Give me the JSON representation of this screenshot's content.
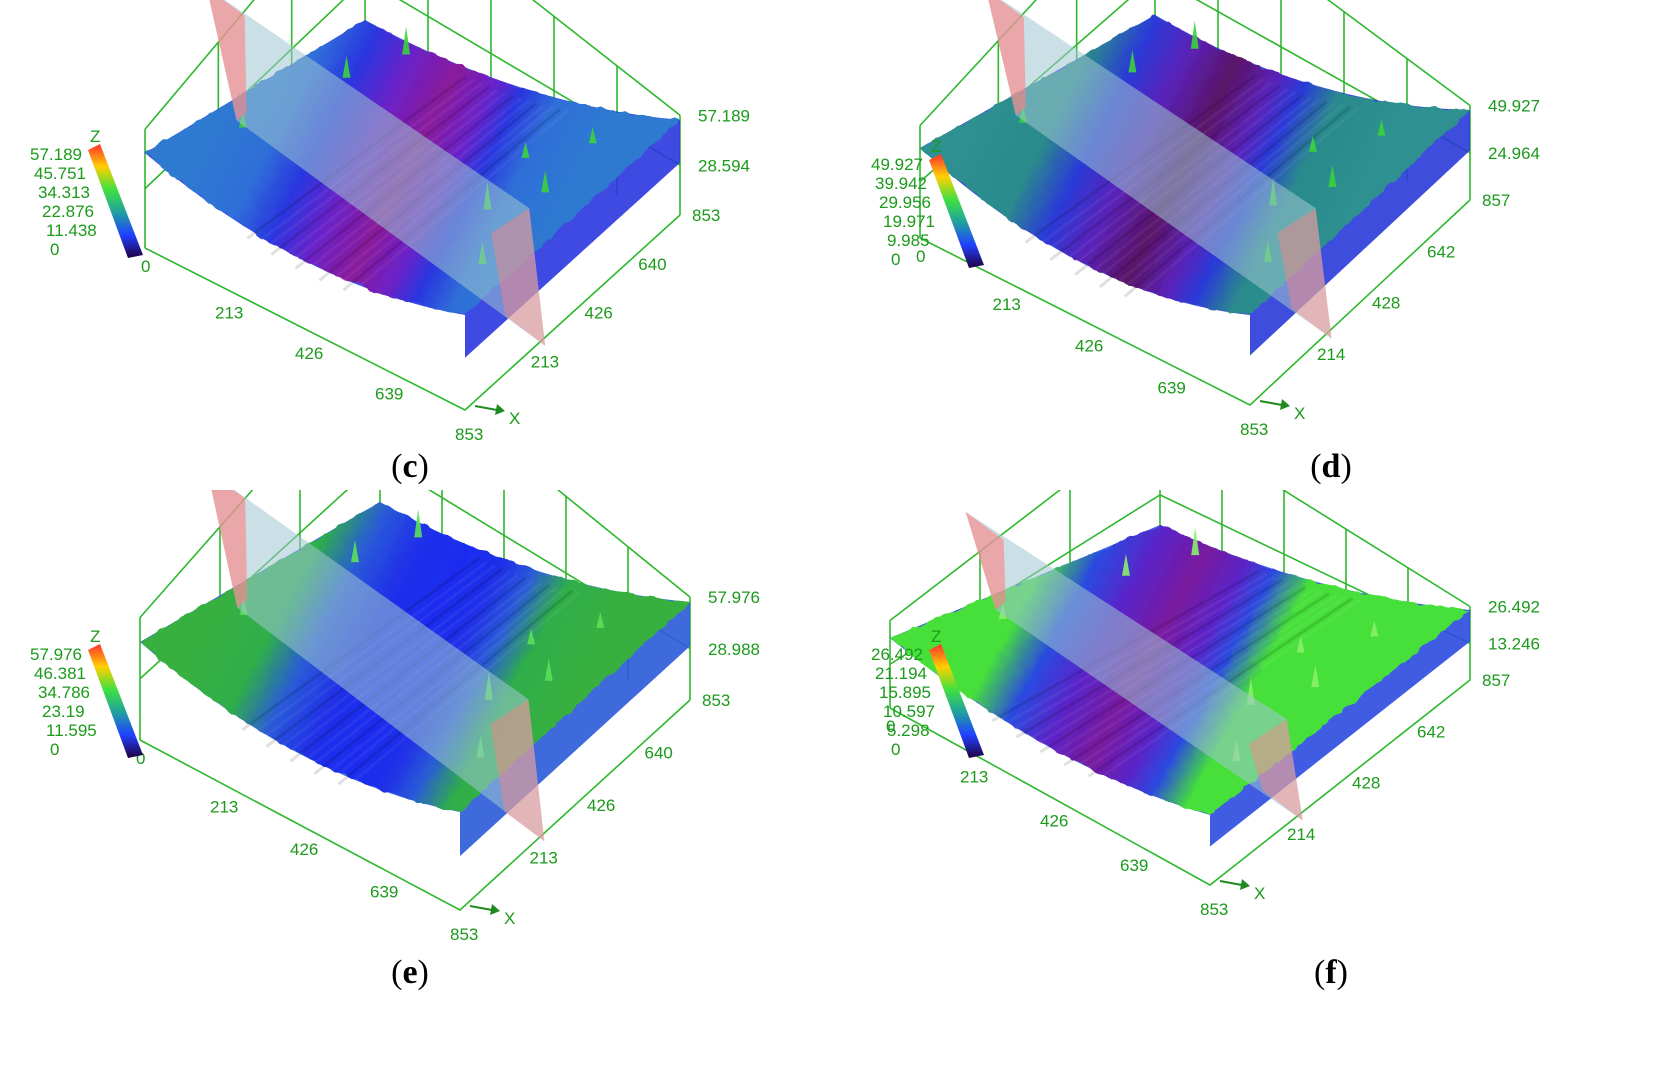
{
  "colors": {
    "axis": "#2db82d",
    "tick_text": "#1b9a1b",
    "plane": "#9fc6d2",
    "plane_edge": "#ff8080"
  },
  "panels": [
    {
      "id": "c",
      "caption": "c",
      "z_ticks": [
        "57.189",
        "28.594"
      ],
      "legend_ticks": [
        "57.189",
        "45.751",
        "34.313",
        "22.876",
        "11.438",
        "0"
      ],
      "legend_top": "Z",
      "x_ticks": [
        "0",
        "213",
        "426",
        "639",
        "853"
      ],
      "y_ticks": [
        "853",
        "640",
        "426",
        "213"
      ],
      "x_label": "X",
      "palette": "purple"
    },
    {
      "id": "d",
      "caption": "d",
      "z_ticks": [
        "49.927",
        "24.964"
      ],
      "legend_ticks": [
        "49.927",
        "39.942",
        "29.956",
        "19.971",
        "9.985",
        "0"
      ],
      "legend_top": "Z",
      "x_ticks": [
        "0",
        "213",
        "426",
        "639",
        "853"
      ],
      "y_ticks": [
        "857",
        "642",
        "428",
        "214"
      ],
      "x_label": "X",
      "palette": "purple-dark"
    },
    {
      "id": "e",
      "caption": "e",
      "z_ticks": [
        "57.976",
        "28.988"
      ],
      "legend_ticks": [
        "57.976",
        "46.381",
        "34.786",
        "23.19",
        "11.595",
        "0"
      ],
      "legend_top": "Z",
      "x_ticks": [
        "0",
        "213",
        "426",
        "639",
        "853"
      ],
      "y_ticks": [
        "853",
        "640",
        "426",
        "213"
      ],
      "x_label": "X",
      "palette": "green-blue"
    },
    {
      "id": "f",
      "caption": "f",
      "z_ticks": [
        "26.492",
        "13.246"
      ],
      "legend_ticks": [
        "26.492",
        "21.194",
        "15.895",
        "10.597",
        "5.298",
        "0"
      ],
      "legend_top": "Z",
      "x_ticks": [
        "0",
        "213",
        "426",
        "639",
        "853"
      ],
      "y_ticks": [
        "857",
        "642",
        "428",
        "214"
      ],
      "x_label": "X",
      "palette": "green-purple"
    }
  ]
}
